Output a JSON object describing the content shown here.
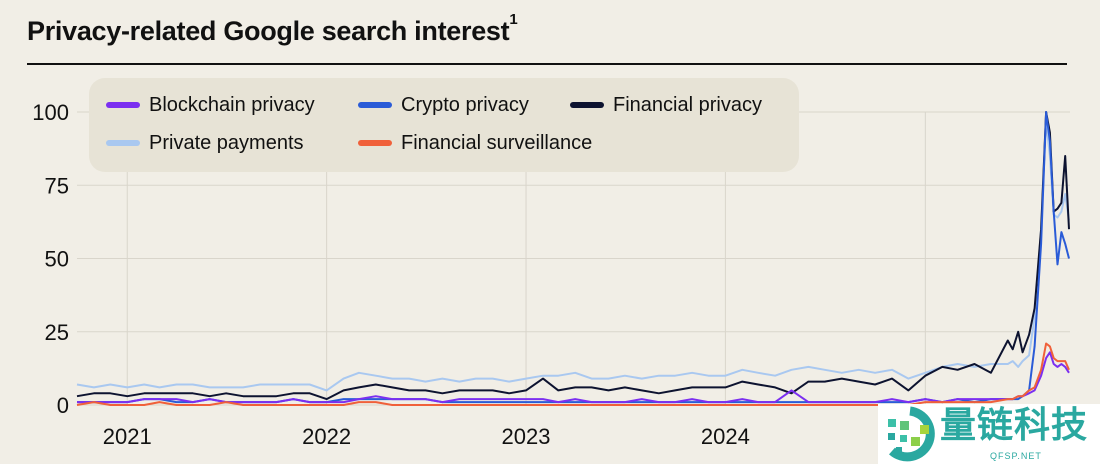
{
  "title": "Privacy-related Google search interest",
  "title_footnote": "1",
  "watermark": {
    "text": "量链科技",
    "subtext": "QFSP.NET"
  },
  "chart_data": {
    "type": "line",
    "title": "Privacy-related Google search interest",
    "xlabel": "",
    "ylabel": "",
    "ylim": [
      0,
      100
    ],
    "xlim": [
      "2020-10-01",
      "2025-09-21"
    ],
    "yticks": [
      0,
      25,
      50,
      75,
      100
    ],
    "xticks": [
      {
        "label": "2021",
        "date": "2021-01-01"
      },
      {
        "label": "2022",
        "date": "2022-01-01"
      },
      {
        "label": "2023",
        "date": "2023-01-01"
      },
      {
        "label": "2024",
        "date": "2024-01-01"
      },
      {
        "label": "2025",
        "date": "2025-01-01"
      }
    ],
    "grid": true,
    "legend_position": "top-left",
    "x": [
      "2020-10-01",
      "2020-11-01",
      "2020-12-01",
      "2021-01-01",
      "2021-02-01",
      "2021-03-01",
      "2021-04-01",
      "2021-05-01",
      "2021-06-01",
      "2021-07-01",
      "2021-08-01",
      "2021-09-01",
      "2021-10-01",
      "2021-11-01",
      "2021-12-01",
      "2022-01-01",
      "2022-02-01",
      "2022-03-01",
      "2022-04-01",
      "2022-05-01",
      "2022-06-01",
      "2022-07-01",
      "2022-08-01",
      "2022-09-01",
      "2022-10-01",
      "2022-11-01",
      "2022-12-01",
      "2023-01-01",
      "2023-02-01",
      "2023-03-01",
      "2023-04-01",
      "2023-05-01",
      "2023-06-01",
      "2023-07-01",
      "2023-08-01",
      "2023-09-01",
      "2023-10-01",
      "2023-11-01",
      "2023-12-01",
      "2024-01-01",
      "2024-02-01",
      "2024-03-01",
      "2024-04-01",
      "2024-05-01",
      "2024-06-01",
      "2024-07-01",
      "2024-08-01",
      "2024-09-01",
      "2024-10-01",
      "2024-11-01",
      "2024-12-01",
      "2025-01-01",
      "2025-02-01",
      "2025-03-01",
      "2025-04-01",
      "2025-05-01",
      "2025-06-01",
      "2025-06-10",
      "2025-06-20",
      "2025-06-28",
      "2025-07-10",
      "2025-07-20",
      "2025-08-01",
      "2025-08-10",
      "2025-08-17",
      "2025-08-24",
      "2025-08-31",
      "2025-09-07",
      "2025-09-14",
      "2025-09-21"
    ],
    "series": [
      {
        "name": "Private payments",
        "color": "#a9c8f0",
        "values": [
          7,
          6,
          7,
          6,
          7,
          6,
          7,
          7,
          6,
          6,
          6,
          7,
          7,
          7,
          7,
          5,
          9,
          11,
          10,
          9,
          9,
          8,
          9,
          8,
          9,
          9,
          8,
          9,
          10,
          10,
          11,
          9,
          9,
          10,
          9,
          10,
          10,
          11,
          10,
          10,
          12,
          11,
          10,
          12,
          13,
          12,
          11,
          12,
          11,
          12,
          9,
          11,
          13,
          14,
          13,
          14,
          14,
          15,
          13,
          15,
          17,
          30,
          60,
          97,
          85,
          65,
          64,
          66,
          72,
          63
        ]
      },
      {
        "name": "Financial privacy",
        "color": "#0d1330",
        "values": [
          3,
          4,
          4,
          3,
          4,
          4,
          4,
          4,
          3,
          4,
          3,
          3,
          3,
          4,
          4,
          2,
          5,
          6,
          7,
          6,
          5,
          5,
          4,
          5,
          5,
          5,
          4,
          5,
          9,
          5,
          6,
          6,
          5,
          6,
          5,
          4,
          5,
          6,
          6,
          6,
          8,
          7,
          6,
          4,
          8,
          8,
          9,
          8,
          7,
          9,
          5,
          10,
          13,
          12,
          14,
          11,
          22,
          19,
          25,
          18,
          24,
          33,
          60,
          100,
          93,
          66,
          67,
          69,
          85,
          60
        ]
      },
      {
        "name": "Crypto privacy",
        "color": "#2a5bd7",
        "values": [
          1,
          1,
          1,
          1,
          2,
          2,
          1,
          1,
          2,
          1,
          1,
          1,
          1,
          2,
          1,
          1,
          2,
          2,
          2,
          2,
          2,
          2,
          1,
          1,
          1,
          1,
          1,
          1,
          1,
          1,
          1,
          1,
          1,
          1,
          1,
          1,
          1,
          1,
          1,
          1,
          1,
          1,
          1,
          1,
          1,
          1,
          1,
          1,
          1,
          1,
          1,
          2,
          1,
          2,
          1,
          2,
          2,
          2,
          2,
          3,
          5,
          20,
          55,
          100,
          90,
          66,
          48,
          59,
          55,
          50
        ]
      },
      {
        "name": "Blockchain privacy",
        "color": "#7b2ff0",
        "values": [
          1,
          1,
          1,
          1,
          2,
          2,
          2,
          1,
          2,
          1,
          1,
          1,
          1,
          2,
          1,
          1,
          1,
          2,
          3,
          2,
          2,
          2,
          1,
          2,
          2,
          2,
          2,
          2,
          2,
          1,
          2,
          1,
          1,
          1,
          2,
          1,
          1,
          2,
          1,
          1,
          2,
          1,
          1,
          5,
          1,
          1,
          1,
          1,
          1,
          2,
          1,
          2,
          1,
          2,
          2,
          2,
          2,
          2,
          3,
          3,
          4,
          5,
          10,
          16,
          18,
          14,
          13,
          14,
          13,
          11
        ]
      },
      {
        "name": "Financial surveillance",
        "color": "#f0603a",
        "values": [
          0,
          1,
          0,
          0,
          0,
          1,
          0,
          0,
          0,
          1,
          0,
          0,
          0,
          0,
          0,
          0,
          0,
          1,
          1,
          0,
          0,
          0,
          0,
          0,
          0,
          0,
          0,
          0,
          0,
          0,
          0,
          0,
          0,
          0,
          0,
          0,
          0,
          0,
          0,
          0,
          0,
          0,
          0,
          0,
          0,
          0,
          0,
          0,
          0,
          0,
          0,
          1,
          1,
          1,
          1,
          1,
          2,
          2,
          3,
          3,
          5,
          6,
          12,
          21,
          20,
          16,
          15,
          15,
          15,
          12
        ]
      }
    ],
    "legend": [
      {
        "label": "Blockchain privacy",
        "color": "#7b2ff0"
      },
      {
        "label": "Crypto privacy",
        "color": "#2a5bd7"
      },
      {
        "label": "Financial privacy",
        "color": "#0d1330"
      },
      {
        "label": "Private payments",
        "color": "#a9c8f0"
      },
      {
        "label": "Financial surveillance",
        "color": "#f0603a"
      }
    ]
  }
}
